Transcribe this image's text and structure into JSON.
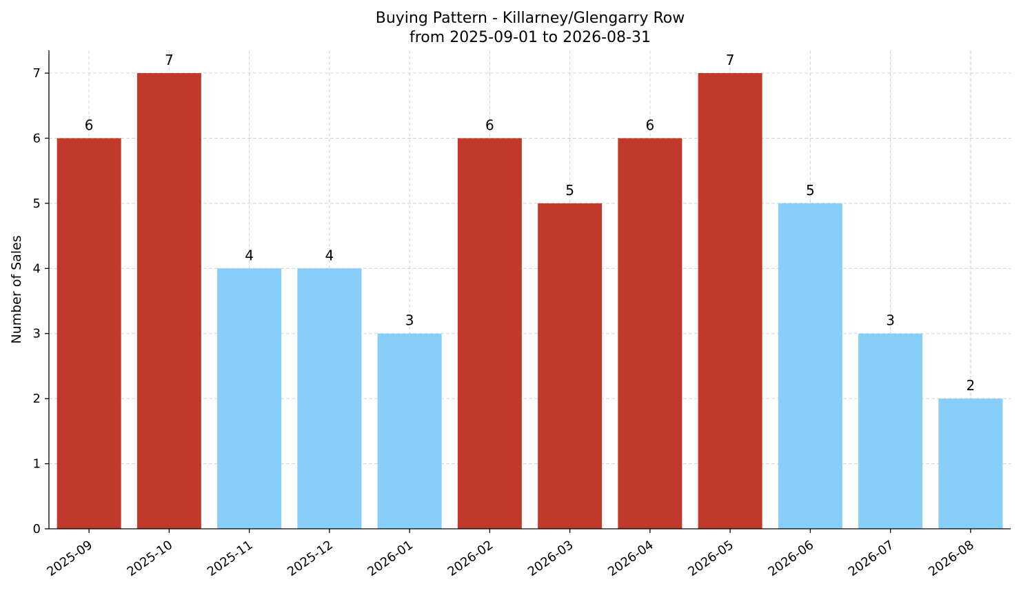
{
  "chart_data": {
    "type": "bar",
    "title": "Buying Pattern - Killarney/Glengarry Row",
    "subtitle": "from 2025-09-01 to 2026-08-31",
    "xlabel": "",
    "ylabel": "Number of Sales",
    "categories": [
      "2025-09",
      "2025-10",
      "2025-11",
      "2025-12",
      "2026-01",
      "2026-02",
      "2026-03",
      "2026-04",
      "2026-05",
      "2026-06",
      "2026-07",
      "2026-08"
    ],
    "values": [
      6,
      7,
      4,
      4,
      3,
      6,
      5,
      6,
      7,
      5,
      3,
      2
    ],
    "data_labels": [
      "6",
      "7",
      "4",
      "4",
      "3",
      "6",
      "5",
      "6",
      "7",
      "5",
      "3",
      "2"
    ],
    "bar_colors": [
      "#c0392b",
      "#c0392b",
      "#87cefa",
      "#87cefa",
      "#87cefa",
      "#c0392b",
      "#c0392b",
      "#c0392b",
      "#c0392b",
      "#87cefa",
      "#87cefa",
      "#87cefa"
    ],
    "yticks": [
      "0",
      "1",
      "2",
      "3",
      "4",
      "5",
      "6",
      "7"
    ],
    "ylim": [
      0,
      7.35
    ],
    "grid": true,
    "legend": "none"
  }
}
